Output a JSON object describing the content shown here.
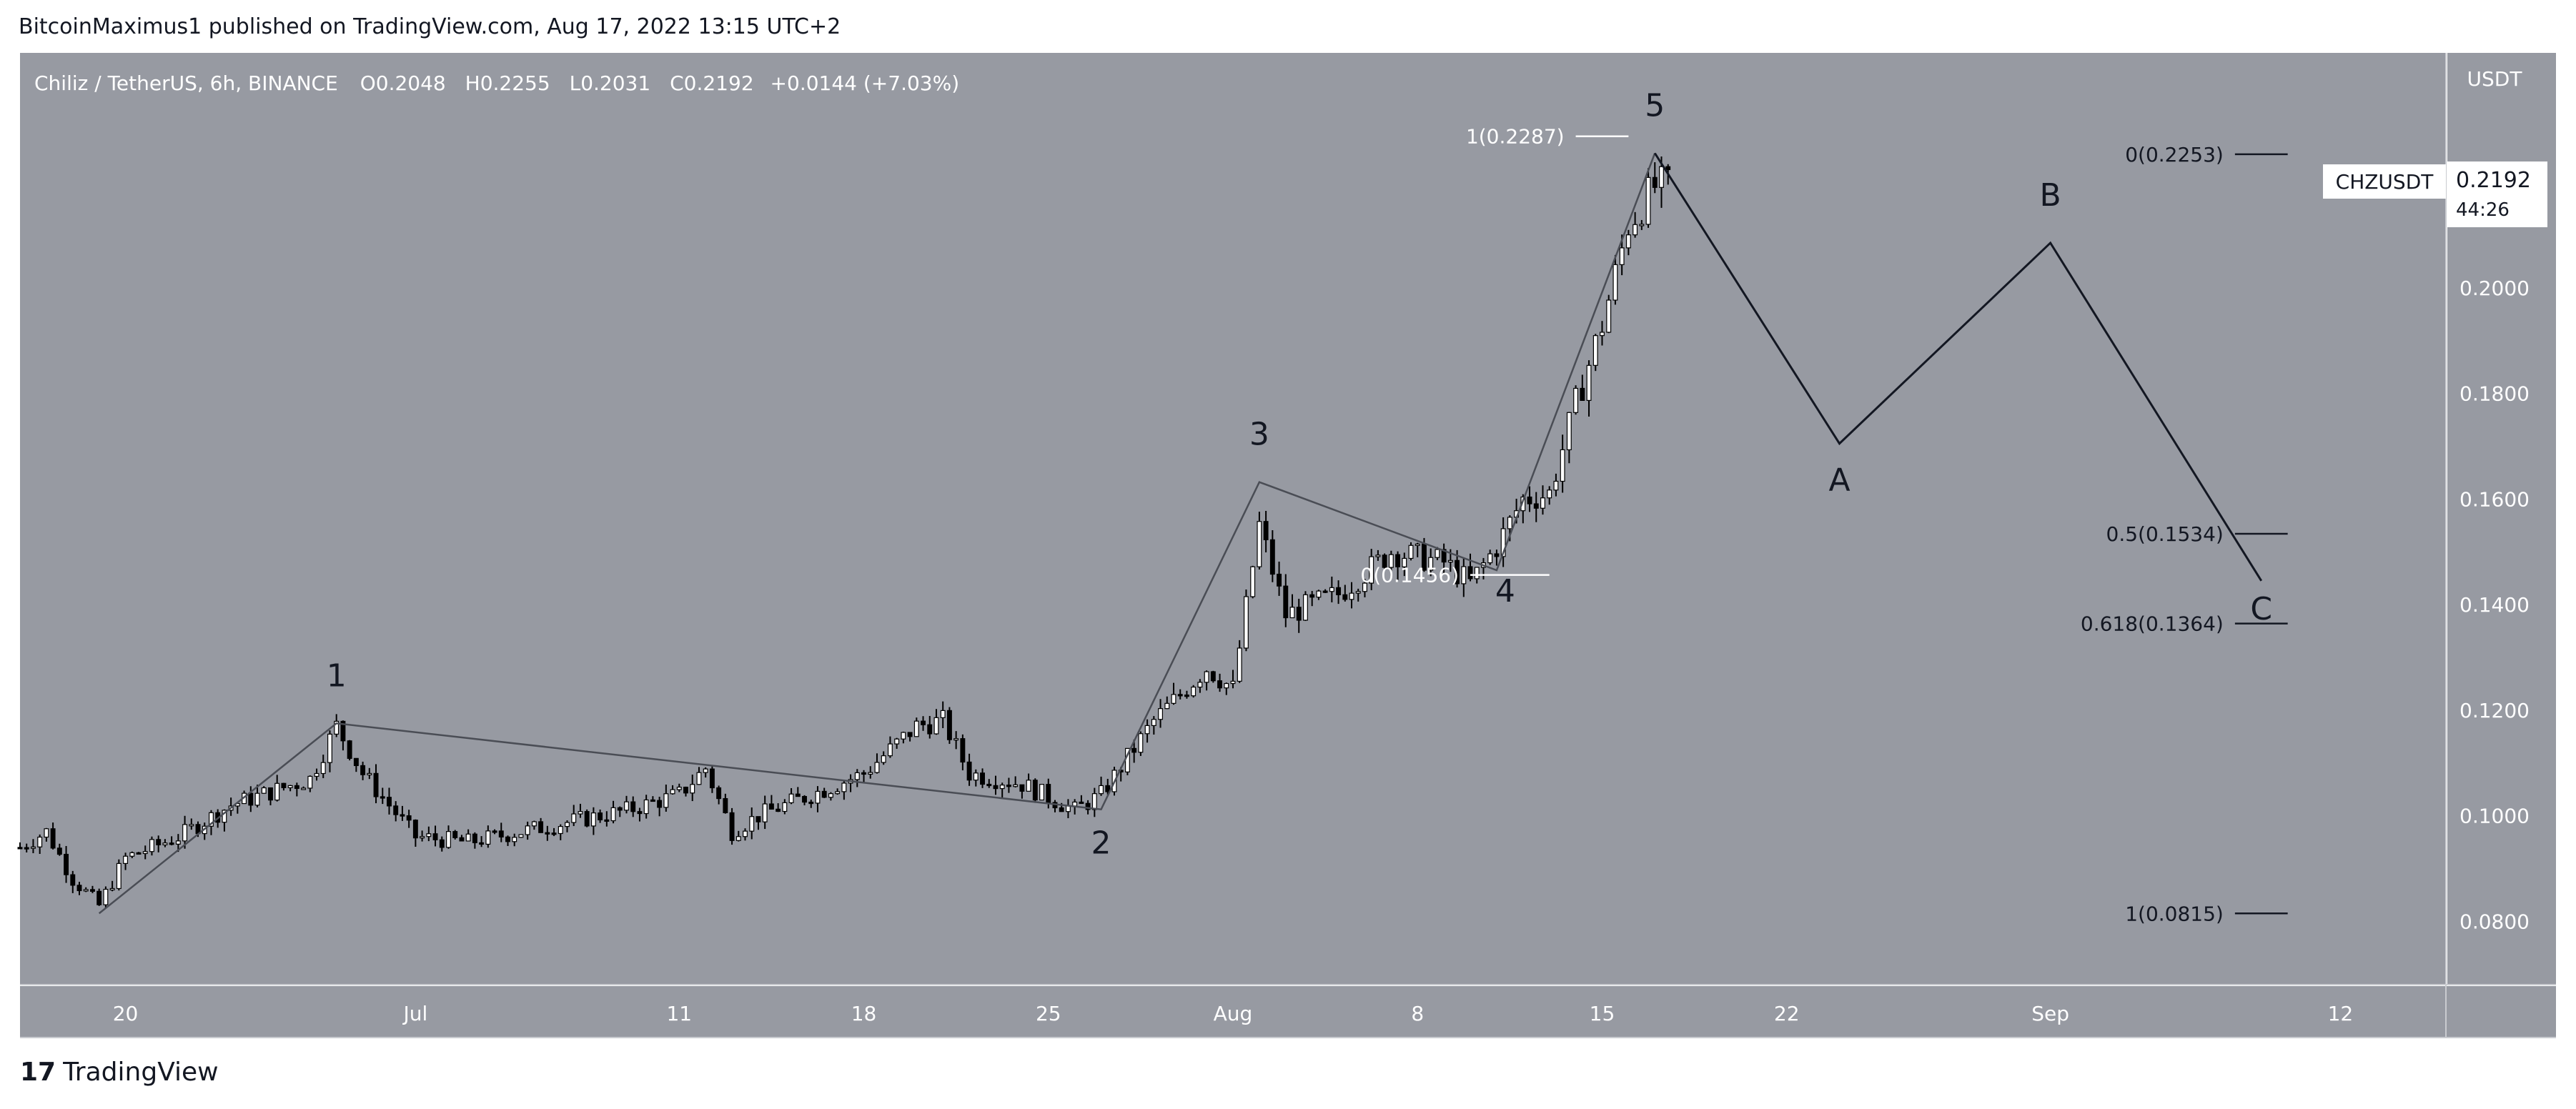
{
  "header": {
    "publisher_line": "BitcoinMaximus1 published on TradingView.com, Aug 17, 2022 13:15 UTC+2"
  },
  "legend": {
    "symbol_line": "Chiliz / TetherUS, 6h, BINANCE",
    "o_label": "O",
    "o_value": "0.2048",
    "h_label": "H",
    "h_value": "0.2255",
    "l_label": "L",
    "l_value": "0.2031",
    "c_label": "C",
    "c_value": "0.2192",
    "change": "+0.0144 (+7.03%)"
  },
  "colors": {
    "chart_bg": "#979aa2",
    "axis_bg": "#979aa2",
    "text_light": "#ffffff",
    "text_dark": "#131722",
    "candle_up": "#ffffff",
    "candle_down": "#000000",
    "wave_line": "#131722",
    "grid_line": "#6e7179"
  },
  "footer": {
    "brand": "TradingView",
    "logo_glyph": "17"
  },
  "chart_data": {
    "type": "candlestick",
    "title": "",
    "interval": "6h",
    "exchange": "BINANCE",
    "price_axis_label": "USDT",
    "y_range": [
      0.068,
      0.2445
    ],
    "y_ticks": [
      {
        "value": 0.2,
        "label": "0.2000"
      },
      {
        "value": 0.18,
        "label": "0.1800"
      },
      {
        "value": 0.16,
        "label": "0.1600"
      },
      {
        "value": 0.14,
        "label": "0.1400"
      },
      {
        "value": 0.12,
        "label": "0.1200"
      },
      {
        "value": 0.1,
        "label": "0.1000"
      },
      {
        "value": 0.08,
        "label": "0.0800"
      }
    ],
    "x_range": [
      "2022-06-16",
      "2022-09-16"
    ],
    "x_ticks": [
      {
        "date": "2022-06-20",
        "label": "20"
      },
      {
        "date": "2022-07-01",
        "label": "Jul"
      },
      {
        "date": "2022-07-11",
        "label": "11"
      },
      {
        "date": "2022-07-18",
        "label": "18"
      },
      {
        "date": "2022-07-25",
        "label": "25"
      },
      {
        "date": "2022-08-01",
        "label": "Aug"
      },
      {
        "date": "2022-08-08",
        "label": "8"
      },
      {
        "date": "2022-08-15",
        "label": "15"
      },
      {
        "date": "2022-08-22",
        "label": "22"
      },
      {
        "date": "2022-09-01",
        "label": "Sep"
      },
      {
        "date": "2022-09-12",
        "label": "12"
      }
    ],
    "candles_from": "2022-06-16",
    "candles_to": "2022-08-17",
    "price_path": [
      [
        "2022-06-16",
        0.094
      ],
      [
        "2022-06-17",
        0.097
      ],
      [
        "2022-06-18",
        0.088
      ],
      [
        "2022-06-19",
        0.083
      ],
      [
        "2022-06-20",
        0.092
      ],
      [
        "2022-06-22",
        0.096
      ],
      [
        "2022-06-24",
        0.102
      ],
      [
        "2022-06-27",
        0.107
      ],
      [
        "2022-06-28",
        0.117
      ],
      [
        "2022-06-29",
        0.108
      ],
      [
        "2022-07-01",
        0.096
      ],
      [
        "2022-07-03",
        0.095
      ],
      [
        "2022-07-06",
        0.098
      ],
      [
        "2022-07-09",
        0.101
      ],
      [
        "2022-07-11",
        0.104
      ],
      [
        "2022-07-12",
        0.109
      ],
      [
        "2022-07-13",
        0.097
      ],
      [
        "2022-07-14",
        0.1
      ],
      [
        "2022-07-16",
        0.104
      ],
      [
        "2022-07-18",
        0.108
      ],
      [
        "2022-07-20",
        0.117
      ],
      [
        "2022-07-21",
        0.118
      ],
      [
        "2022-07-22",
        0.108
      ],
      [
        "2022-07-24",
        0.106
      ],
      [
        "2022-07-26",
        0.101
      ],
      [
        "2022-07-27",
        0.104
      ],
      [
        "2022-07-29",
        0.118
      ],
      [
        "2022-07-31",
        0.128
      ],
      [
        "2022-08-01",
        0.124
      ],
      [
        "2022-08-02",
        0.155
      ],
      [
        "2022-08-03",
        0.138
      ],
      [
        "2022-08-05",
        0.142
      ],
      [
        "2022-08-07",
        0.15
      ],
      [
        "2022-08-09",
        0.148
      ],
      [
        "2022-08-10",
        0.144
      ],
      [
        "2022-08-11",
        0.151
      ],
      [
        "2022-08-12",
        0.16
      ],
      [
        "2022-08-13",
        0.161
      ],
      [
        "2022-08-14",
        0.178
      ],
      [
        "2022-08-15",
        0.193
      ],
      [
        "2022-08-16",
        0.212
      ],
      [
        "2022-08-17",
        0.2192
      ]
    ],
    "last_price_tag": {
      "symbol": "CHZUSDT",
      "price": "0.2192",
      "countdown": "44:26"
    },
    "wave_counts": [
      {
        "label": "1",
        "date": "2022-06-28",
        "price": 0.1175
      },
      {
        "label": "2",
        "date": "2022-07-27",
        "price": 0.1012
      },
      {
        "label": "3",
        "date": "2022-08-02",
        "price": 0.1632
      },
      {
        "label": "4",
        "date": "2022-08-11",
        "price": 0.1465
      },
      {
        "label": "5",
        "date": "2022-08-17",
        "price": 0.2255
      },
      {
        "label": "A",
        "date": "2022-08-24",
        "price": 0.1705
      },
      {
        "label": "B",
        "date": "2022-09-01",
        "price": 0.2085
      },
      {
        "label": "C",
        "date": "2022-09-09",
        "price": 0.1445
      }
    ],
    "wave_path": [
      [
        "2022-06-19",
        0.0815
      ],
      [
        "2022-06-28",
        0.1175
      ],
      [
        "2022-07-27",
        0.1012
      ],
      [
        "2022-08-02",
        0.1632
      ],
      [
        "2022-08-11",
        0.1465
      ],
      [
        "2022-08-17",
        0.2255
      ]
    ],
    "projection_path": [
      [
        "2022-08-17",
        0.2255
      ],
      [
        "2022-08-24",
        0.1705
      ],
      [
        "2022-09-01",
        0.2085
      ],
      [
        "2022-09-09",
        0.1445
      ]
    ],
    "fib_levels": [
      {
        "label": "1(0.2287)",
        "value": 0.2287,
        "color": "#ffffff",
        "from": "2022-08-14",
        "to": "2022-08-16"
      },
      {
        "label": "0(0.2253)",
        "value": 0.2253,
        "color": "#131722",
        "from": "2022-09-08",
        "to": "2022-09-10"
      },
      {
        "label": "0.5(0.1534)",
        "value": 0.1534,
        "color": "#131722",
        "from": "2022-09-08",
        "to": "2022-09-10"
      },
      {
        "label": "0.618(0.1364)",
        "value": 0.1364,
        "color": "#131722",
        "from": "2022-09-08",
        "to": "2022-09-10"
      },
      {
        "label": "1(0.0815)",
        "value": 0.0815,
        "color": "#131722",
        "from": "2022-09-08",
        "to": "2022-09-10"
      },
      {
        "label": "0(0.1456)",
        "value": 0.1456,
        "color": "#ffffff",
        "from": "2022-08-10",
        "to": "2022-08-13"
      }
    ]
  }
}
